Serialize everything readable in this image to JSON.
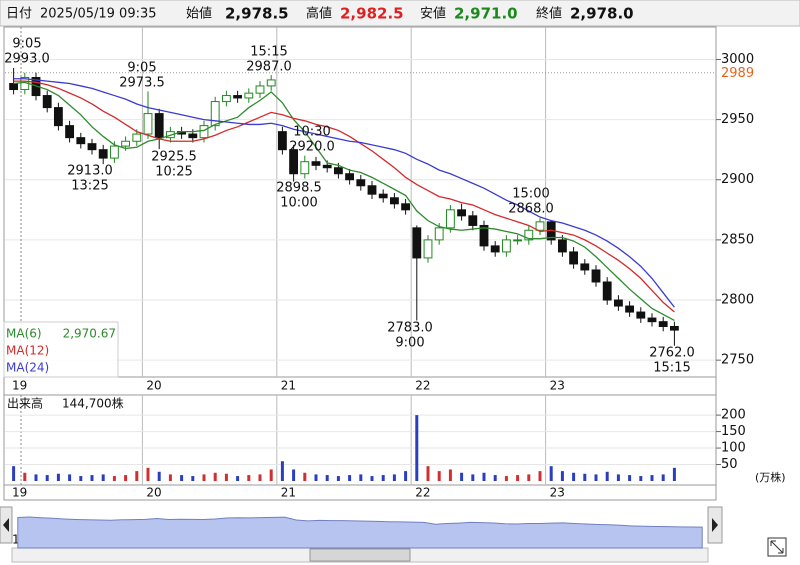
{
  "header": {
    "date_label": "日付",
    "date": "2025/05/19 09:35",
    "open_label": "始値",
    "open": "2,978.5",
    "high_label": "高値",
    "high": "2,982.5",
    "low_label": "安値",
    "low": "2,971.0",
    "close_label": "終値",
    "close": "2,978.0"
  },
  "chart_data": [
    {
      "type": "candlestick",
      "categories": [
        "19",
        null,
        null,
        null,
        null,
        null,
        null,
        null,
        null,
        null,
        null,
        null,
        "20",
        null,
        null,
        null,
        null,
        null,
        null,
        null,
        null,
        null,
        null,
        null,
        "21",
        null,
        null,
        null,
        null,
        null,
        null,
        null,
        null,
        null,
        null,
        null,
        "22",
        null,
        null,
        null,
        null,
        null,
        null,
        null,
        null,
        null,
        null,
        null,
        "23",
        null,
        null,
        null,
        null,
        null,
        null,
        null,
        null,
        null,
        null,
        null
      ],
      "ohlc": [
        [
          2980,
          2993,
          2971,
          2975
        ],
        [
          2975,
          2989,
          2971,
          2985
        ],
        [
          2985,
          2989,
          2966,
          2970
        ],
        [
          2970,
          2974,
          2956,
          2960
        ],
        [
          2960,
          2964,
          2941,
          2945
        ],
        [
          2945,
          2949,
          2931,
          2935
        ],
        [
          2935,
          2939,
          2926,
          2930
        ],
        [
          2930,
          2934,
          2921,
          2925
        ],
        [
          2925,
          2929,
          2913,
          2918
        ],
        [
          2918,
          2932,
          2914,
          2928
        ],
        [
          2928,
          2936,
          2924,
          2932
        ],
        [
          2932,
          2942,
          2928,
          2938
        ],
        [
          2938,
          2973.5,
          2934,
          2955
        ],
        [
          2955,
          2959,
          2925.5,
          2935
        ],
        [
          2935,
          2944,
          2931,
          2940
        ],
        [
          2940,
          2944,
          2934,
          2938
        ],
        [
          2938,
          2942,
          2931,
          2935
        ],
        [
          2935,
          2949,
          2931,
          2945
        ],
        [
          2945,
          2969,
          2941,
          2965
        ],
        [
          2965,
          2974,
          2961,
          2970
        ],
        [
          2970,
          2974,
          2964,
          2968
        ],
        [
          2968,
          2976,
          2964,
          2972
        ],
        [
          2972,
          2982,
          2968,
          2978
        ],
        [
          2978,
          2987,
          2974,
          2983
        ],
        [
          2940,
          2944,
          2921,
          2925
        ],
        [
          2925,
          2929,
          2898.5,
          2905
        ],
        [
          2905,
          2920,
          2901,
          2915
        ],
        [
          2915,
          2919,
          2908,
          2912
        ],
        [
          2912,
          2916,
          2906,
          2910
        ],
        [
          2910,
          2914,
          2901,
          2905
        ],
        [
          2905,
          2909,
          2896,
          2900
        ],
        [
          2900,
          2904,
          2891,
          2895
        ],
        [
          2895,
          2899,
          2884,
          2888
        ],
        [
          2888,
          2892,
          2881,
          2885
        ],
        [
          2885,
          2889,
          2876,
          2880
        ],
        [
          2880,
          2884,
          2871,
          2875
        ],
        [
          2860,
          2862,
          2783,
          2835
        ],
        [
          2835,
          2854,
          2831,
          2850
        ],
        [
          2850,
          2864,
          2846,
          2860
        ],
        [
          2860,
          2879,
          2856,
          2875
        ],
        [
          2875,
          2880,
          2866,
          2870
        ],
        [
          2870,
          2874,
          2858,
          2862
        ],
        [
          2862,
          2866,
          2841,
          2845
        ],
        [
          2845,
          2849,
          2836,
          2840
        ],
        [
          2840,
          2854,
          2836,
          2850
        ],
        [
          2850,
          2854,
          2846,
          2850
        ],
        [
          2850,
          2862,
          2846,
          2858
        ],
        [
          2858,
          2868,
          2854,
          2865
        ],
        [
          2865,
          2866,
          2846,
          2850
        ],
        [
          2850,
          2854,
          2836,
          2840
        ],
        [
          2840,
          2844,
          2826,
          2830
        ],
        [
          2830,
          2834,
          2821,
          2825
        ],
        [
          2825,
          2829,
          2811,
          2815
        ],
        [
          2815,
          2819,
          2796,
          2800
        ],
        [
          2800,
          2804,
          2791,
          2795
        ],
        [
          2795,
          2799,
          2786,
          2790
        ],
        [
          2790,
          2794,
          2781,
          2785
        ],
        [
          2785,
          2789,
          2778,
          2782
        ],
        [
          2782,
          2786,
          2774,
          2778
        ],
        [
          2778,
          2782,
          2762,
          2775
        ]
      ],
      "up_color": "#1f8a1f",
      "down_color": "#111111",
      "series": [
        {
          "name": "MA(6)",
          "value_label": "2,970.67",
          "color": "#2e8b2e",
          "values": [
            2980,
            2981,
            2978,
            2975,
            2970,
            2962,
            2954,
            2944,
            2936,
            2929,
            2926,
            2927,
            2932,
            2934,
            2937,
            2940,
            2940,
            2941,
            2946,
            2949,
            2952,
            2960,
            2966,
            2973,
            2964,
            2950,
            2940,
            2927,
            2914,
            2912,
            2908,
            2906,
            2902,
            2897,
            2892,
            2887,
            2874,
            2866,
            2861,
            2859,
            2858,
            2859,
            2860,
            2859,
            2857,
            2855,
            2851,
            2851,
            2852,
            2852,
            2849,
            2844,
            2836,
            2827,
            2818,
            2809,
            2801,
            2793,
            2788,
            2783
          ]
        },
        {
          "name": "MA(12)",
          "color": "#d42a2a",
          "values": [
            2982,
            2982,
            2981,
            2979,
            2976,
            2972,
            2968,
            2963,
            2957,
            2952,
            2946,
            2940,
            2937,
            2934,
            2932,
            2932,
            2932,
            2934,
            2937,
            2941,
            2944,
            2948,
            2952,
            2956,
            2954,
            2951,
            2949,
            2946,
            2944,
            2941,
            2936,
            2930,
            2924,
            2917,
            2910,
            2902,
            2896,
            2891,
            2886,
            2884,
            2881,
            2879,
            2875,
            2871,
            2868,
            2865,
            2862,
            2857,
            2858,
            2856,
            2854,
            2850,
            2845,
            2839,
            2833,
            2826,
            2818,
            2808,
            2798,
            2790
          ]
        },
        {
          "name": "MA(24)",
          "color": "#3b3bd0",
          "values": [
            2984,
            2984,
            2983,
            2982,
            2981,
            2980,
            2978,
            2976,
            2973,
            2970,
            2967,
            2963,
            2960,
            2958,
            2956,
            2954,
            2952,
            2950,
            2949,
            2948,
            2947,
            2946,
            2946,
            2947,
            2945,
            2942,
            2940,
            2938,
            2936,
            2934,
            2932,
            2931,
            2929,
            2927,
            2925,
            2922,
            2917,
            2913,
            2908,
            2905,
            2901,
            2897,
            2893,
            2888,
            2883,
            2879,
            2874,
            2869,
            2866,
            2864,
            2861,
            2858,
            2854,
            2849,
            2843,
            2836,
            2828,
            2818,
            2806,
            2794
          ]
        }
      ],
      "current": {
        "value": 2989,
        "color": "#e8631a"
      },
      "annotations": [
        {
          "time": "9:05",
          "price": "2993.0"
        },
        {
          "time": "9:05",
          "price": "2973.5"
        },
        {
          "time": "15:15",
          "price": "2987.0"
        },
        {
          "time": "10:30",
          "price": "2920.0"
        },
        {
          "price": "2913.0",
          "time": "13:25"
        },
        {
          "price": "2925.5",
          "time": "10:25"
        },
        {
          "price": "2898.5",
          "time": "10:00"
        },
        {
          "price": "2783.0",
          "time": "9:00"
        },
        {
          "time": "15:00",
          "price": "2868.0"
        },
        {
          "price": "2762.0",
          "time": "15:15"
        }
      ],
      "ylim": [
        2736,
        3027
      ],
      "yticks": [
        2750,
        2800,
        2850,
        2900,
        2950,
        3000
      ],
      "grid": true
    },
    {
      "type": "bar",
      "title": "出来高",
      "subtitle": "144,700株",
      "unit": "(万株)",
      "values": [
        45,
        25,
        20,
        18,
        22,
        20,
        15,
        18,
        20,
        15,
        18,
        30,
        40,
        28,
        20,
        18,
        15,
        20,
        25,
        22,
        15,
        18,
        20,
        35,
        60,
        35,
        25,
        20,
        18,
        15,
        18,
        20,
        15,
        18,
        20,
        30,
        200,
        45,
        30,
        35,
        25,
        20,
        25,
        18,
        15,
        18,
        20,
        30,
        45,
        30,
        25,
        22,
        20,
        28,
        20,
        18,
        15,
        18,
        20,
        40
      ],
      "up_color": "#d03030",
      "down_color": "#2a3fc0",
      "ylim": [
        0,
        255
      ],
      "yticks": [
        50,
        100,
        150,
        200
      ],
      "grid": true
    }
  ]
}
